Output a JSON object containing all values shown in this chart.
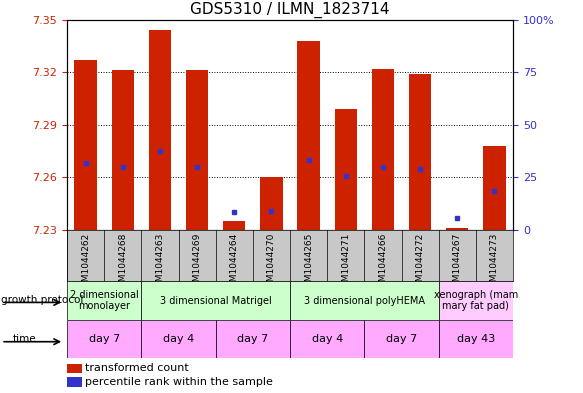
{
  "title": "GDS5310 / ILMN_1823714",
  "samples": [
    "GSM1044262",
    "GSM1044268",
    "GSM1044263",
    "GSM1044269",
    "GSM1044264",
    "GSM1044270",
    "GSM1044265",
    "GSM1044271",
    "GSM1044266",
    "GSM1044272",
    "GSM1044267",
    "GSM1044273"
  ],
  "bar_values": [
    7.327,
    7.321,
    7.344,
    7.321,
    7.235,
    7.26,
    7.338,
    7.299,
    7.322,
    7.319,
    7.231,
    7.278
  ],
  "percentile_values": [
    7.268,
    7.266,
    7.275,
    7.266,
    7.24,
    7.241,
    7.27,
    7.261,
    7.266,
    7.265,
    7.237,
    7.252
  ],
  "ymin": 7.23,
  "ymax": 7.35,
  "yticks": [
    7.23,
    7.26,
    7.29,
    7.32,
    7.35
  ],
  "right_yticks": [
    0,
    25,
    50,
    75,
    100
  ],
  "right_ytick_labels": [
    "0",
    "25",
    "50",
    "75",
    "100%"
  ],
  "growth_protocol_groups": [
    {
      "label": "2 dimensional\nmonolayer",
      "start": 0,
      "end": 2,
      "color": "#ccffcc"
    },
    {
      "label": "3 dimensional Matrigel",
      "start": 2,
      "end": 6,
      "color": "#ccffcc"
    },
    {
      "label": "3 dimensional polyHEMA",
      "start": 6,
      "end": 10,
      "color": "#ccffcc"
    },
    {
      "label": "xenograph (mam\nmary fat pad)",
      "start": 10,
      "end": 12,
      "color": "#ffccff"
    }
  ],
  "time_groups": [
    {
      "label": "day 7",
      "start": 0,
      "end": 2,
      "color": "#ffaaff"
    },
    {
      "label": "day 4",
      "start": 2,
      "end": 4,
      "color": "#ffaaff"
    },
    {
      "label": "day 7",
      "start": 4,
      "end": 6,
      "color": "#ffaaff"
    },
    {
      "label": "day 4",
      "start": 6,
      "end": 8,
      "color": "#ffaaff"
    },
    {
      "label": "day 7",
      "start": 8,
      "end": 10,
      "color": "#ffaaff"
    },
    {
      "label": "day 43",
      "start": 10,
      "end": 12,
      "color": "#ffaaff"
    }
  ],
  "bar_color": "#cc2200",
  "dot_color": "#3333cc",
  "bar_width": 0.6,
  "title_fontsize": 11,
  "tick_label_color_left": "#cc2200",
  "tick_label_color_right": "#3333cc",
  "sample_label_fontsize": 6.5,
  "annotation_fontsize": 7.5,
  "legend_fontsize": 8
}
